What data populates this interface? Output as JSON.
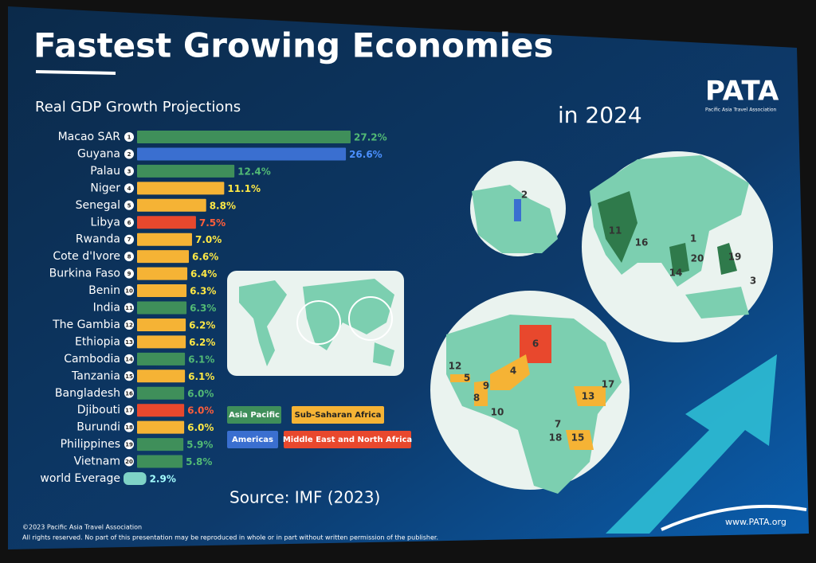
{
  "header": {
    "title": "Fastest Growing Economies",
    "subtitle": "in 2024",
    "logo": "PATA",
    "logo_subtitle": "Pacific Asia Travel Association"
  },
  "chart_data": {
    "type": "bar",
    "orientation": "horizontal",
    "axis_label": "Real GDP Growth Projections",
    "categories": [
      "Macao SAR",
      "Guyana",
      "Palau",
      "Niger",
      "Senegal",
      "Libya",
      "Rwanda",
      "Cote d'Ivore",
      "Burkina Faso",
      "Benin",
      "India",
      "The Gambia",
      "Ethiopia",
      "Cambodia",
      "Tanzania",
      "Bangladesh",
      "Djibouti",
      "Burundi",
      "Philippines",
      "Vietnam",
      "world Everage"
    ],
    "ranks": [
      1,
      2,
      3,
      4,
      5,
      6,
      7,
      8,
      9,
      10,
      11,
      12,
      13,
      14,
      15,
      16,
      17,
      18,
      19,
      20,
      null
    ],
    "values": [
      27.2,
      26.6,
      12.4,
      11.1,
      8.8,
      7.5,
      7.0,
      6.6,
      6.4,
      6.3,
      6.3,
      6.2,
      6.2,
      6.1,
      6.1,
      6.0,
      6.0,
      6.0,
      5.9,
      5.8,
      2.9
    ],
    "value_labels": [
      "27.2%",
      "26.6%",
      "12.4%",
      "11.1%",
      "8.8%",
      "7.5%",
      "7.0%",
      "6.6%",
      "6.4%",
      "6.3%",
      "6.3%",
      "6.2%",
      "6.2%",
      "6.1%",
      "6.1%",
      "6.0%",
      "6.0%",
      "6.0%",
      "5.9%",
      "5.8%",
      "2.9%"
    ],
    "colors": [
      "#3f8f5a",
      "#3a6fd0",
      "#3f8f5a",
      "#f5b335",
      "#f5b335",
      "#e8482d",
      "#f5b335",
      "#f5b335",
      "#f5b335",
      "#f5b335",
      "#3f8f5a",
      "#f5b335",
      "#f5b335",
      "#3f8f5a",
      "#f5b335",
      "#3f8f5a",
      "#e8482d",
      "#f5b335",
      "#3f8f5a",
      "#3f8f5a",
      "#7fd3c6"
    ],
    "legend": [
      {
        "name": "Asia Pacific",
        "color": "#3f8f5a"
      },
      {
        "name": "Sub-Saharan Africa",
        "color": "#f5b335"
      },
      {
        "name": "Americas",
        "color": "#3a6fd0"
      },
      {
        "name": "Middle East and North Africa",
        "color": "#e8482d"
      }
    ]
  },
  "map_labels": [
    "2",
    "11",
    "16",
    "1",
    "20",
    "14",
    "19",
    "3",
    "6",
    "12",
    "5",
    "4",
    "9",
    "8",
    "10",
    "13",
    "17",
    "7",
    "18",
    "15"
  ],
  "footer": {
    "source": "Source: IMF (2023)",
    "copyright": "©2023 Pacific Asia Travel Association",
    "rights": "All rights reserved. No part of this presentation may be reproduced in whole or in part without written permission of the publisher.",
    "website": "www.PATA.org"
  }
}
